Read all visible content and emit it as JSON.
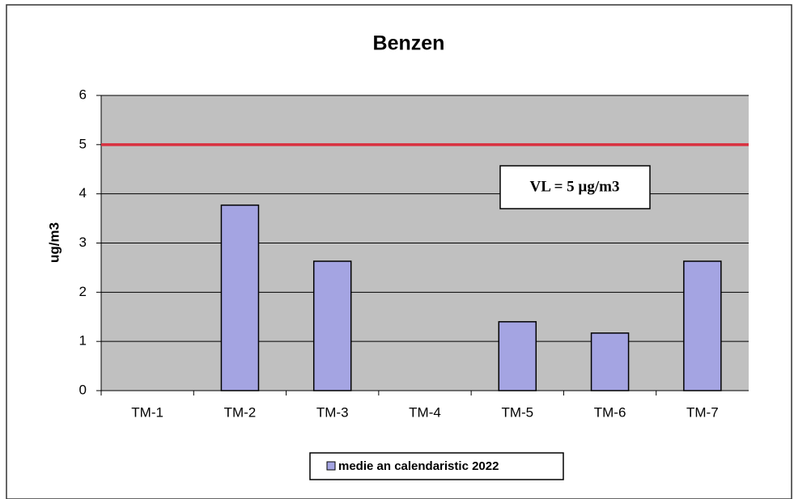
{
  "chart_data": {
    "type": "bar",
    "title": "Benzen",
    "y_label": "ug/m3",
    "categories": [
      "TM-1",
      "TM-2",
      "TM-3",
      "TM-4",
      "TM-5",
      "TM-6",
      "TM-7"
    ],
    "series": [
      {
        "name": "medie an calendaristic 2022",
        "color": "#a4a4e2",
        "values": [
          null,
          3.77,
          2.63,
          null,
          1.4,
          1.17,
          2.63
        ]
      }
    ],
    "ylim": [
      0,
      6
    ],
    "yticks": [
      0,
      1,
      2,
      3,
      4,
      5,
      6
    ],
    "grid": true,
    "reference_line": {
      "value": 5,
      "color": "#d9303f",
      "label": "VL = 5 µg/m3"
    },
    "legend": "bottom"
  }
}
